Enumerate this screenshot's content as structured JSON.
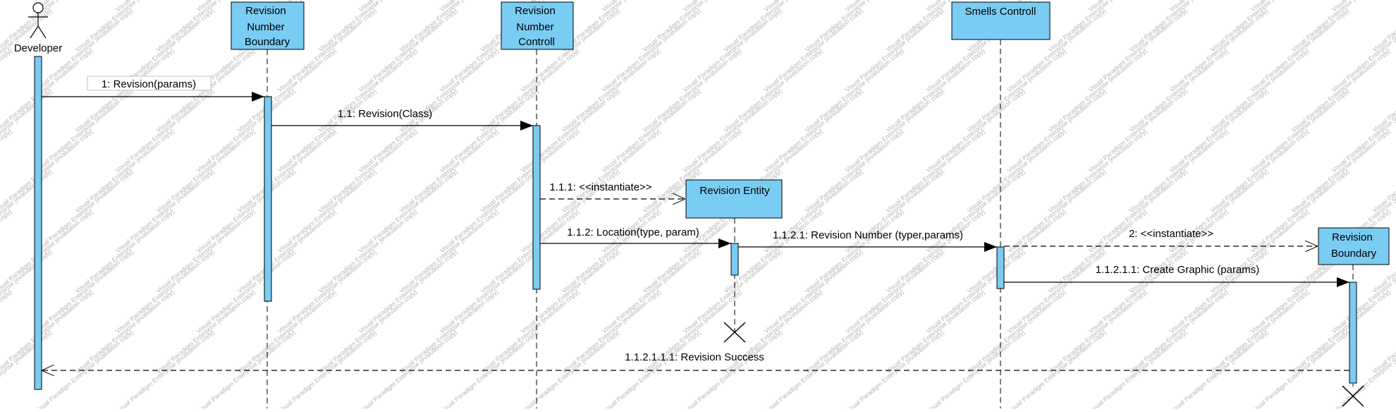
{
  "diagram": {
    "type": "sequence",
    "colors": {
      "box_fill": "#79CCF2",
      "stroke": "#000000",
      "watermark": "#B4B4B4"
    },
    "watermark_text": "Visual Paradigm Enterprise [evaluation copy]",
    "actor": {
      "id": "developer",
      "label": "Developer",
      "icon": "stick-figure-icon"
    },
    "lifelines": [
      {
        "id": "rnb1",
        "label_lines": [
          "Revision",
          "Number",
          "Boundary"
        ]
      },
      {
        "id": "rnc",
        "label_lines": [
          "Revision",
          "Number",
          "Controll"
        ]
      },
      {
        "id": "re",
        "label_lines": [
          "Revision Entity"
        ]
      },
      {
        "id": "sc",
        "label_lines": [
          "Smells Controll"
        ]
      },
      {
        "id": "rb2",
        "label_lines": [
          "Revision",
          "Boundary"
        ]
      }
    ],
    "messages": [
      {
        "id": "m1",
        "label": "1: Revision(params)",
        "from": "developer",
        "to": "rnb1",
        "kind": "sync"
      },
      {
        "id": "m2",
        "label": "1.1: Revision(Class)",
        "from": "rnb1",
        "to": "rnc",
        "kind": "sync"
      },
      {
        "id": "m3",
        "label": "1.1.1: <<instantiate>>",
        "from": "rnc",
        "to": "re",
        "kind": "create"
      },
      {
        "id": "m4",
        "label": "1.1.2: Location(type, param)",
        "from": "rnc",
        "to": "re",
        "kind": "sync"
      },
      {
        "id": "m5",
        "label": "1.1.2.1: Revision Number (typer,params)",
        "from": "re",
        "to": "sc",
        "kind": "sync"
      },
      {
        "id": "m6",
        "label": "2: <<instantiate>>",
        "from": "sc",
        "to": "rb2",
        "kind": "create"
      },
      {
        "id": "m7",
        "label": "1.1.2.1.1: Create Graphic (params)",
        "from": "sc",
        "to": "rb2",
        "kind": "sync"
      },
      {
        "id": "m8",
        "label": "1.1.2.1.1.1: Revision Success",
        "from": "rb2",
        "to": "developer",
        "kind": "return"
      }
    ],
    "destroyed": [
      "re",
      "rb2"
    ]
  }
}
